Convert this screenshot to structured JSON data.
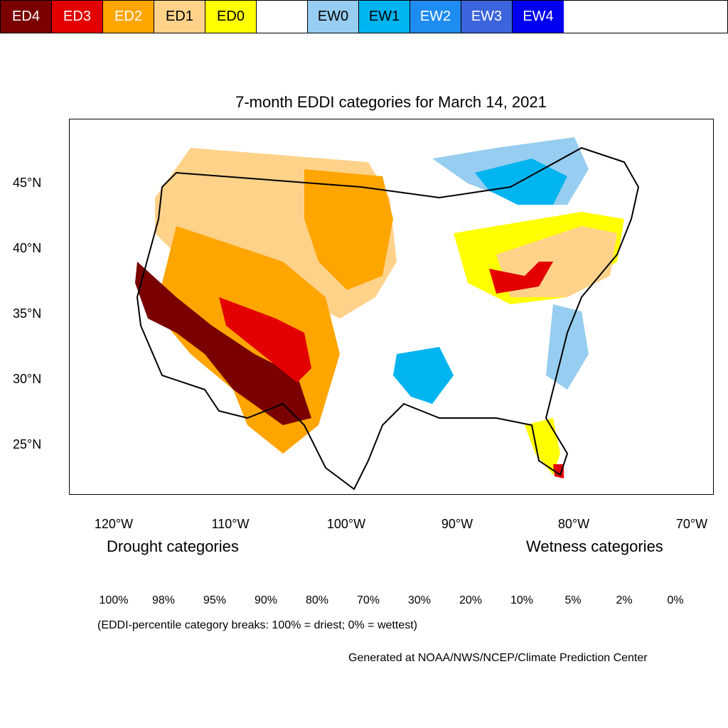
{
  "title": "7-month EDDI categories for March 14, 2021",
  "lat_labels": [
    "45°N",
    "40°N",
    "35°N",
    "30°N",
    "25°N"
  ],
  "lon_labels": [
    "120°W",
    "110°W",
    "100°W",
    "90°W",
    "80°W",
    "70°W"
  ],
  "legend": {
    "drought_heading": "Drought categories",
    "wetness_heading": "Wetness categories",
    "categories": [
      {
        "label": "ED4",
        "color": "#7a0000",
        "text_color": "#ffffff"
      },
      {
        "label": "ED3",
        "color": "#e30000",
        "text_color": "#ffffff"
      },
      {
        "label": "ED2",
        "color": "#ffa500",
        "text_color": "#ffffff"
      },
      {
        "label": "ED1",
        "color": "#ffd28a",
        "text_color": "#000000"
      },
      {
        "label": "ED0",
        "color": "#ffff00",
        "text_color": "#000000"
      },
      {
        "label": "",
        "color": "#ffffff",
        "text_color": "#000000"
      },
      {
        "label": "EW0",
        "color": "#96cdf0",
        "text_color": "#000000"
      },
      {
        "label": "EW1",
        "color": "#00b4f0",
        "text_color": "#000000"
      },
      {
        "label": "EW2",
        "color": "#1e8cf0",
        "text_color": "#ffffff"
      },
      {
        "label": "EW3",
        "color": "#3c64dc",
        "text_color": "#ffffff"
      },
      {
        "label": "EW4",
        "color": "#0000f0",
        "text_color": "#ffffff"
      }
    ],
    "percentiles": [
      "100%",
      "98%",
      "95%",
      "90%",
      "80%",
      "70%",
      "30%",
      "20%",
      "10%",
      "5%",
      "2%",
      "0%"
    ]
  },
  "breaks_note": "(EDDI-percentile category breaks: 100% = driest; 0% = wettest)",
  "credit": "Generated at NOAA/NWS/NCEP/Climate Prediction Center"
}
